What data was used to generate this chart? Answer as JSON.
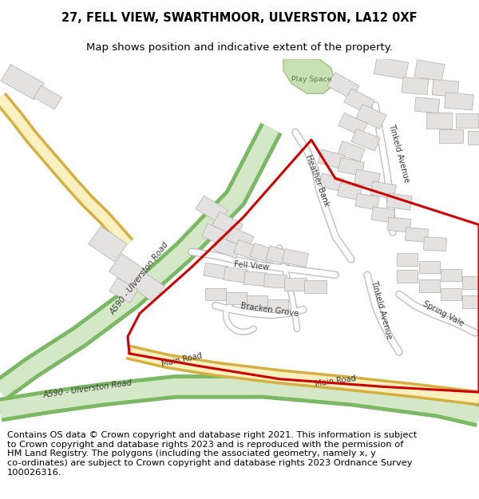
{
  "title_line1": "27, FELL VIEW, SWARTHMOOR, ULVERSTON, LA12 0XF",
  "title_line2": "Map shows position and indicative extent of the property.",
  "footer_text": "Contains OS data © Crown copyright and database right 2021. This information is subject\nto Crown copyright and database rights 2023 and is reproduced with the permission of\nHM Land Registry. The polygons (including the associated geometry, namely x, y\nco-ordinates) are subject to Crown copyright and database rights 2023 Ordnance Survey\n100026316.",
  "title_fontsize": 10.5,
  "title2_fontsize": 9.5,
  "footer_fontsize": 8.2,
  "bg_color": "#ffffff",
  "map_bg": "#f7f6f4",
  "green_road_fill": "#d4e8c8",
  "green_road_edge": "#7ab864",
  "yellow_road_fill": "#faf0c0",
  "yellow_road_edge": "#d4b040",
  "white_road_fill": "#ffffff",
  "white_road_edge": "#c0c0c0",
  "building_fill": "#e4e2e0",
  "building_edge": "#b0aeac",
  "play_fill": "#c8e0b4",
  "play_edge": "#90b870",
  "red_color": "#cc0000",
  "red_lw": 2.2,
  "label_color": "#3a3a3a",
  "label_fs": 7.2
}
